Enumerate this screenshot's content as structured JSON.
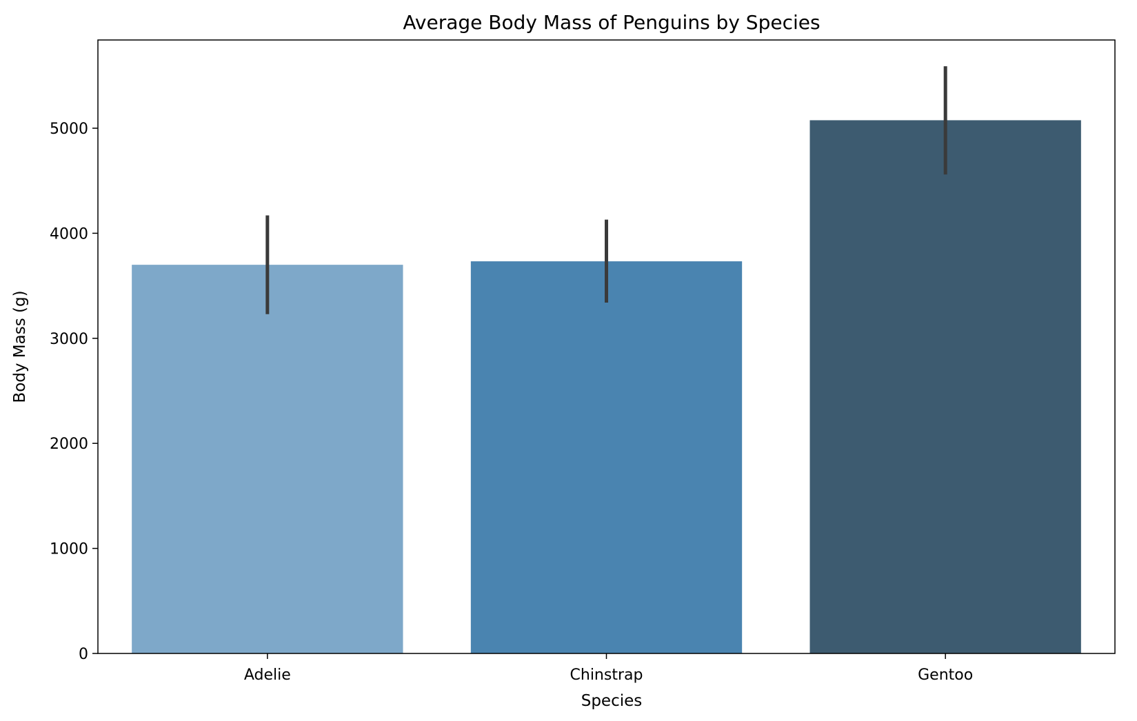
{
  "chart_data": {
    "type": "bar",
    "title": "Average Body Mass of Penguins by Species",
    "xlabel": "Species",
    "ylabel": "Body Mass (g)",
    "categories": [
      "Adelie",
      "Chinstrap",
      "Gentoo"
    ],
    "values": [
      3700,
      3733,
      5076
    ],
    "error_bars": [
      {
        "low": 3230,
        "high": 4170
      },
      {
        "low": 3340,
        "high": 4130
      },
      {
        "low": 4560,
        "high": 5590
      }
    ],
    "colors": [
      "#7ea8c9",
      "#4a84b0",
      "#3d5b70"
    ],
    "error_color": "#3a3a3a",
    "ylim": [
      0,
      5840
    ],
    "yticks": [
      0,
      1000,
      2000,
      3000,
      4000,
      5000
    ],
    "ytick_labels": [
      "0",
      "1000",
      "2000",
      "3000",
      "4000",
      "5000"
    ],
    "grid": false,
    "legend": "none"
  }
}
